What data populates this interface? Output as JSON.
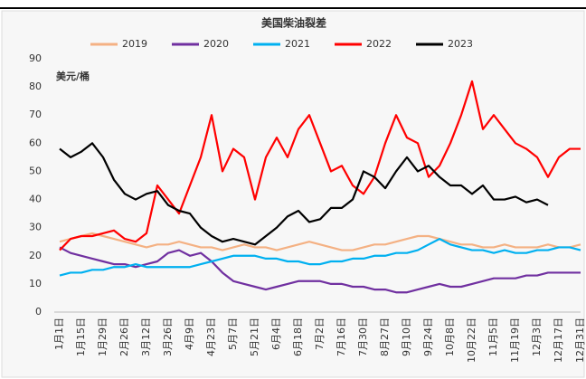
{
  "chart_data": {
    "type": "line",
    "title": "美国柴油裂差",
    "y_label": "美元/桶",
    "categories": [
      "1月1日",
      null,
      "1月15日",
      null,
      "1月29日",
      null,
      "2月26日",
      null,
      "3月12日",
      null,
      "3月26日",
      null,
      "4月9日",
      null,
      "4月23日",
      null,
      "5月7日",
      null,
      "5月21日",
      null,
      "6月4日",
      null,
      "6月18日",
      null,
      "7月2日",
      null,
      "7月16日",
      null,
      "7月30日",
      null,
      "8月27日",
      null,
      "9月10日",
      null,
      "9月24日",
      null,
      "10月8日",
      null,
      "10月22日",
      null,
      "11月5日",
      null,
      "11月19日",
      null,
      "12月3日",
      null,
      "12月17日",
      null,
      "12月31日"
    ],
    "series": [
      {
        "name": "2019",
        "color": "#f4b183",
        "values": [
          25,
          26,
          27,
          28,
          27,
          26,
          25,
          24,
          23,
          24,
          24,
          25,
          24,
          23,
          23,
          22,
          23,
          24,
          23,
          23,
          22,
          23,
          24,
          25,
          24,
          23,
          22,
          22,
          23,
          24,
          24,
          25,
          26,
          27,
          27,
          26,
          25,
          24,
          24,
          23,
          23,
          24,
          23,
          23,
          23,
          24,
          23,
          23,
          24
        ]
      },
      {
        "name": "2020",
        "color": "#7030a0",
        "values": [
          23,
          21,
          20,
          19,
          18,
          17,
          17,
          16,
          17,
          18,
          21,
          22,
          20,
          21,
          18,
          14,
          11,
          10,
          9,
          8,
          9,
          10,
          11,
          11,
          11,
          10,
          10,
          9,
          9,
          8,
          8,
          7,
          7,
          8,
          9,
          10,
          9,
          9,
          10,
          11,
          12,
          12,
          12,
          13,
          13,
          14,
          14,
          14,
          14
        ]
      },
      {
        "name": "2021",
        "color": "#00b0f0",
        "values": [
          13,
          14,
          14,
          15,
          15,
          16,
          16,
          17,
          16,
          16,
          16,
          16,
          16,
          17,
          18,
          19,
          20,
          20,
          20,
          19,
          19,
          18,
          18,
          17,
          17,
          18,
          18,
          19,
          19,
          20,
          20,
          21,
          21,
          22,
          24,
          26,
          24,
          23,
          22,
          22,
          21,
          22,
          21,
          21,
          22,
          22,
          23,
          23,
          22
        ]
      },
      {
        "name": "2022",
        "color": "#ff0000",
        "values": [
          22,
          26,
          27,
          27,
          28,
          29,
          26,
          25,
          28,
          45,
          40,
          35,
          45,
          55,
          70,
          50,
          58,
          55,
          40,
          55,
          62,
          55,
          65,
          70,
          60,
          50,
          52,
          45,
          42,
          48,
          60,
          70,
          62,
          60,
          48,
          52,
          60,
          70,
          82,
          65,
          70,
          65,
          60,
          58,
          55,
          48,
          55,
          58,
          58
        ]
      },
      {
        "name": "2023",
        "color": "#000000",
        "values": [
          58,
          55,
          57,
          60,
          55,
          47,
          42,
          40,
          42,
          43,
          38,
          36,
          35,
          30,
          27,
          25,
          26,
          25,
          24,
          27,
          30,
          34,
          36,
          32,
          33,
          37,
          37,
          40,
          50,
          48,
          44,
          50,
          55,
          50,
          52,
          48,
          45,
          45,
          42,
          45,
          40,
          40,
          41,
          39,
          40,
          38,
          null,
          null,
          null
        ]
      }
    ],
    "ylim": [
      0,
      90
    ],
    "yticks": [
      0,
      10,
      20,
      30,
      40,
      50,
      60,
      70,
      80,
      90
    ],
    "grid": false
  }
}
